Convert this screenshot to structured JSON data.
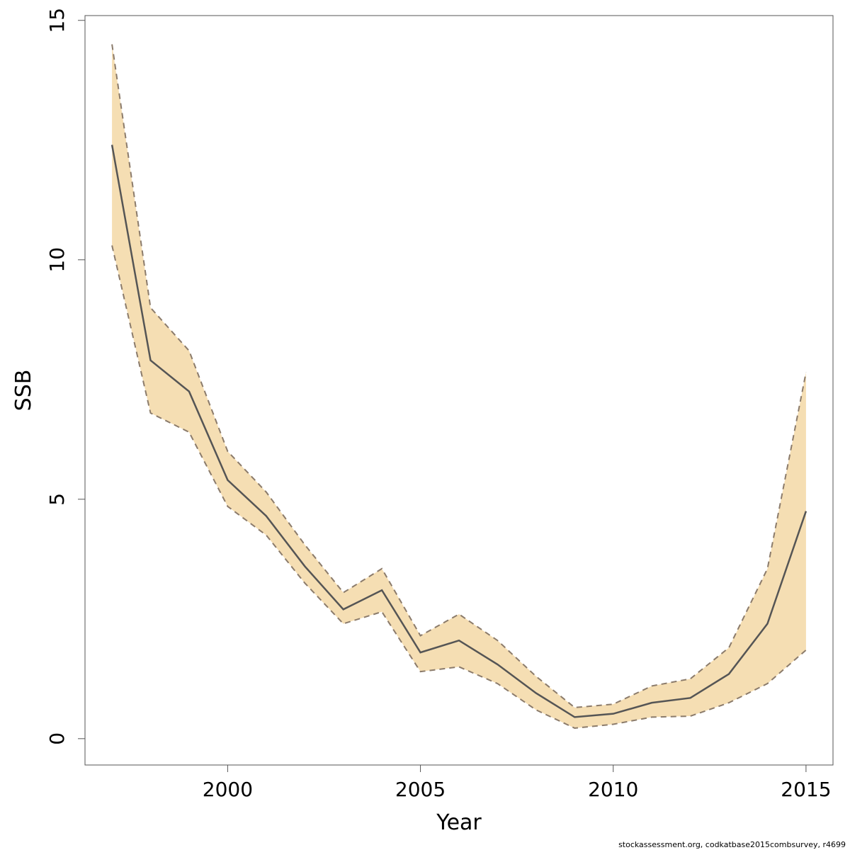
{
  "chart_data": {
    "type": "line",
    "xlabel": "Year",
    "ylabel": "SSB",
    "xlim": [
      1996.3,
      2015.7
    ],
    "ylim": [
      -0.55,
      15.1
    ],
    "x_ticks": [
      2000,
      2005,
      2010,
      2015
    ],
    "y_ticks": [
      0,
      5,
      10,
      15
    ],
    "grid": false,
    "legend": "none",
    "x": [
      1997,
      1998,
      1999,
      2000,
      2001,
      2002,
      2003,
      2004,
      2005,
      2006,
      2007,
      2008,
      2009,
      2010,
      2011,
      2012,
      2013,
      2014,
      2015
    ],
    "series": [
      {
        "role": "estimate",
        "values": [
          12.4,
          7.9,
          7.25,
          5.4,
          4.65,
          3.6,
          2.7,
          3.1,
          1.8,
          2.05,
          1.55,
          0.95,
          0.45,
          0.52,
          0.75,
          0.85,
          1.35,
          2.4,
          4.75
        ]
      },
      {
        "role": "upper",
        "values": [
          14.5,
          9.0,
          8.1,
          6.0,
          5.15,
          4.05,
          3.05,
          3.55,
          2.15,
          2.6,
          2.05,
          1.3,
          0.65,
          0.72,
          1.1,
          1.25,
          1.9,
          3.55,
          7.65
        ]
      },
      {
        "role": "lower",
        "values": [
          10.3,
          6.8,
          6.4,
          4.85,
          4.25,
          3.25,
          2.4,
          2.65,
          1.4,
          1.5,
          1.15,
          0.6,
          0.22,
          0.3,
          0.45,
          0.47,
          0.75,
          1.15,
          1.85
        ]
      }
    ],
    "colors": {
      "band": "#f5deb3",
      "line": "#555555",
      "bound": "#8b7b6b",
      "axis": "#555555"
    },
    "footnote": "stockassessment.org, codkatbase2015combsurvey, r4699"
  }
}
